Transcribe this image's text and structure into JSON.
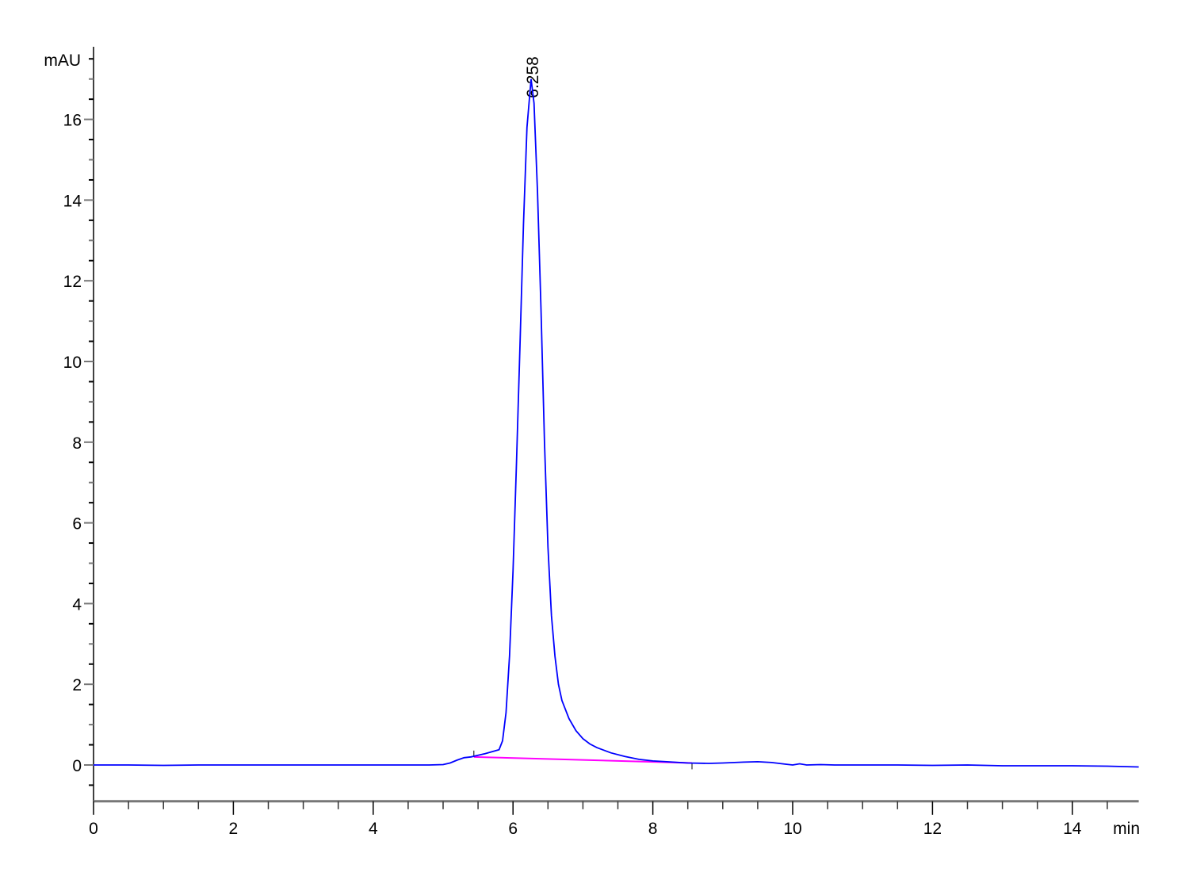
{
  "chart_data": {
    "type": "line",
    "title": "",
    "ylabel": "mAU",
    "xlabel": "min",
    "xlim": [
      0,
      14.95
    ],
    "ylim": [
      -0.9,
      17.8
    ],
    "x_ticks": [
      0,
      2,
      4,
      6,
      8,
      10,
      12,
      14
    ],
    "x_minor_step": 0.5,
    "y_ticks": [
      0,
      2,
      4,
      6,
      8,
      10,
      12,
      14,
      16
    ],
    "y_minor_step": 0.5,
    "grid": false,
    "colors": {
      "signal": "#0000ff",
      "baseline": "#ff00ff",
      "axis": "#000000"
    },
    "peaks": [
      {
        "label": "6.258",
        "x": 6.258,
        "y": 17.0
      }
    ],
    "integration_baseline": {
      "start": [
        5.44,
        0.2
      ],
      "end": [
        8.56,
        0.05
      ]
    },
    "series": [
      {
        "x": [
          0,
          0.5,
          1,
          1.5,
          2,
          2.5,
          3,
          3.5,
          4,
          4.5,
          4.8,
          5.0,
          5.1,
          5.2,
          5.3,
          5.4,
          5.5,
          5.6,
          5.7,
          5.8,
          5.85,
          5.9,
          5.95,
          6.0,
          6.05,
          6.1,
          6.15,
          6.2,
          6.258,
          6.3,
          6.35,
          6.4,
          6.45,
          6.5,
          6.55,
          6.6,
          6.65,
          6.7,
          6.8,
          6.9,
          7.0,
          7.1,
          7.2,
          7.4,
          7.6,
          7.8,
          8.0,
          8.2,
          8.5,
          8.8,
          9.0,
          9.3,
          9.5,
          9.7,
          9.9,
          10.0,
          10.1,
          10.2,
          10.4,
          10.6,
          11,
          11.5,
          12,
          12.5,
          13,
          13.5,
          14,
          14.5,
          14.95
        ],
        "y": [
          0,
          0,
          -0.01,
          0,
          0,
          0,
          0,
          0,
          0,
          0,
          0,
          0.01,
          0.05,
          0.12,
          0.18,
          0.2,
          0.24,
          0.28,
          0.33,
          0.38,
          0.6,
          1.3,
          2.7,
          4.8,
          7.5,
          10.4,
          13.4,
          15.8,
          17.0,
          16.4,
          14.2,
          11.3,
          8.0,
          5.4,
          3.7,
          2.7,
          2.0,
          1.6,
          1.15,
          0.85,
          0.65,
          0.52,
          0.43,
          0.3,
          0.21,
          0.14,
          0.1,
          0.08,
          0.05,
          0.04,
          0.05,
          0.07,
          0.08,
          0.06,
          0.02,
          0.0,
          0.03,
          0.0,
          0.01,
          0.0,
          0.0,
          0.0,
          -0.01,
          0.0,
          -0.02,
          -0.02,
          -0.02,
          -0.03,
          -0.05
        ]
      }
    ]
  }
}
